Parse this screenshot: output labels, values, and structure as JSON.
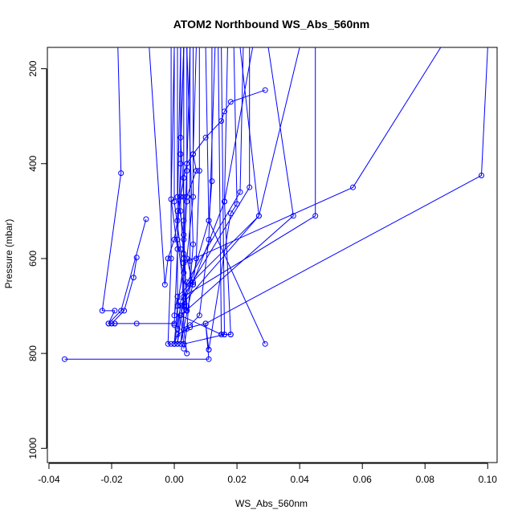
{
  "chart_data": {
    "type": "line",
    "title": "ATOM2 Northbound WS_Abs_560nm",
    "xlabel": "WS_Abs_560nm",
    "ylabel": "Pressure (mbar)",
    "xlim": [
      -0.0405,
      0.103
    ],
    "ylim": [
      1030,
      155
    ],
    "y_reversed": true,
    "x_ticks": [
      -0.04,
      -0.02,
      0.0,
      0.02,
      0.04,
      0.06,
      0.08,
      0.1
    ],
    "x_tick_labels": [
      "-0.04",
      "-0.02",
      "0.00",
      "0.02",
      "0.04",
      "0.06",
      "0.08",
      "0.10"
    ],
    "y_ticks": [
      200,
      400,
      600,
      800,
      1000
    ],
    "y_tick_labels": [
      "200",
      "400",
      "600",
      "800",
      "1000"
    ],
    "grid": false,
    "legend": "none",
    "series_color": "#0000ff",
    "series": [
      {
        "x": [
          -0.008,
          -0.003,
          -0.002,
          0.0,
          0.001,
          0.002,
          0.003,
          0.004,
          0.006,
          0.01,
          0.015,
          0.016,
          0.018,
          0.029
        ],
        "y": [
          155,
          655,
          600,
          560,
          520,
          470,
          430,
          400,
          380,
          345,
          310,
          290,
          270,
          245
        ]
      },
      {
        "x": [
          -0.018,
          -0.017,
          -0.023,
          -0.019,
          -0.021,
          -0.019,
          -0.02,
          -0.019,
          -0.012,
          0.0
        ],
        "y": [
          155,
          420,
          710,
          710,
          737,
          737,
          737,
          737,
          737,
          737
        ]
      },
      {
        "x": [
          -0.009,
          -0.017,
          -0.021,
          -0.02,
          -0.016,
          -0.013,
          -0.012
        ],
        "y": [
          517,
          710,
          737,
          737,
          710,
          640,
          598
        ]
      },
      {
        "x": [
          0.1,
          0.098,
          0.01,
          0.005,
          0.001,
          0.0
        ],
        "y": [
          155,
          425,
          737,
          745,
          760,
          780
        ]
      },
      {
        "x": [
          0.085,
          0.057,
          0.003,
          0.001,
          0.0
        ],
        "y": [
          155,
          450,
          610,
          700,
          780
        ]
      },
      {
        "x": [
          -0.035,
          0.011,
          0.01,
          0.011
        ],
        "y": [
          812,
          812,
          737,
          792
        ]
      },
      {
        "x": [
          0.03,
          0.038,
          0.002,
          0.003
        ],
        "y": [
          155,
          510,
          720,
          780
        ]
      },
      {
        "x": [
          0.045,
          0.045,
          0.003,
          0.001
        ],
        "y": [
          155,
          510,
          680,
          780
        ]
      },
      {
        "x": [
          0.04,
          0.027,
          0.001,
          0.0
        ],
        "y": [
          155,
          510,
          680,
          720
        ]
      },
      {
        "x": [
          0.022,
          0.021,
          0.004,
          0.002
        ],
        "y": [
          155,
          460,
          650,
          780
        ]
      },
      {
        "x": [
          0.025,
          0.016,
          0.006,
          0.002
        ],
        "y": [
          155,
          480,
          650,
          780
        ]
      },
      {
        "x": [
          0.024,
          0.024,
          0.002,
          0.001
        ],
        "y": [
          155,
          450,
          690,
          780
        ]
      },
      {
        "x": [
          0.017,
          0.016,
          0.018,
          0.018,
          0.015,
          0.016
        ],
        "y": [
          155,
          480,
          760,
          760,
          760,
          760
        ]
      },
      {
        "x": [
          0.012,
          0.012,
          0.011,
          0.003
        ],
        "y": [
          155,
          437,
          520,
          700
        ]
      },
      {
        "x": [
          0.01,
          0.011,
          0.029
        ],
        "y": [
          155,
          520,
          780
        ]
      },
      {
        "x": [
          0.013,
          0.011,
          0.008,
          0.005
        ],
        "y": [
          155,
          560,
          720,
          740
        ]
      },
      {
        "x": [
          0.007,
          0.006,
          0.007,
          0.004
        ],
        "y": [
          155,
          380,
          415,
          470
        ]
      },
      {
        "x": [
          0.006,
          0.006,
          0.004,
          0.006
        ],
        "y": [
          155,
          470,
          600,
          655
        ]
      },
      {
        "x": [
          0.005,
          0.004,
          0.003,
          0.003
        ],
        "y": [
          155,
          415,
          560,
          700
        ]
      },
      {
        "x": [
          0.004,
          0.004,
          0.003,
          0.004
        ],
        "y": [
          155,
          480,
          590,
          700
        ]
      },
      {
        "x": [
          0.003,
          0.002,
          0.002,
          0.003
        ],
        "y": [
          155,
          380,
          500,
          600
        ]
      },
      {
        "x": [
          0.003,
          0.002,
          0.003,
          0.003
        ],
        "y": [
          155,
          345,
          470,
          630
        ]
      },
      {
        "x": [
          0.002,
          0.002,
          0.001,
          0.004
        ],
        "y": [
          155,
          400,
          560,
          710
        ]
      },
      {
        "x": [
          0.001,
          0.001,
          0.003,
          0.004
        ],
        "y": [
          155,
          470,
          550,
          710
        ]
      },
      {
        "x": [
          0.0,
          0.0,
          0.002,
          0.003
        ],
        "y": [
          155,
          480,
          580,
          710
        ]
      },
      {
        "x": [
          0.0,
          -0.001,
          0.001,
          0.0
        ],
        "y": [
          155,
          475,
          580,
          740
        ]
      },
      {
        "x": [
          -0.001,
          -0.001,
          -0.002,
          -0.001
        ],
        "y": [
          155,
          600,
          780,
          780
        ]
      },
      {
        "x": [
          0.002,
          0.001,
          0.001,
          0.001
        ],
        "y": [
          155,
          500,
          700,
          748
        ]
      },
      {
        "x": [
          0.003,
          0.003,
          0.003,
          0.004
        ],
        "y": [
          155,
          520,
          750,
          800
        ]
      },
      {
        "x": [
          0.004,
          0.006,
          0.004,
          0.003
        ],
        "y": [
          155,
          570,
          748,
          790
        ]
      },
      {
        "x": [
          0.005,
          0.005,
          0.005
        ],
        "y": [
          155,
          605,
          655
        ]
      },
      {
        "x": [
          0.008,
          0.008,
          0.007,
          0.006
        ],
        "y": [
          155,
          415,
          600,
          655
        ]
      },
      {
        "x": [
          0.019,
          0.02,
          0.018,
          0.011
        ],
        "y": [
          155,
          485,
          505,
          792
        ]
      },
      {
        "x": [
          0.021,
          0.027,
          0.002,
          0.0
        ],
        "y": [
          155,
          510,
          700,
          780
        ]
      },
      {
        "x": [
          0.015,
          0.016,
          0.003
        ],
        "y": [
          155,
          760,
          780
        ]
      },
      {
        "x": [
          0.014,
          0.015,
          0.002
        ],
        "y": [
          155,
          760,
          720
        ]
      }
    ]
  }
}
